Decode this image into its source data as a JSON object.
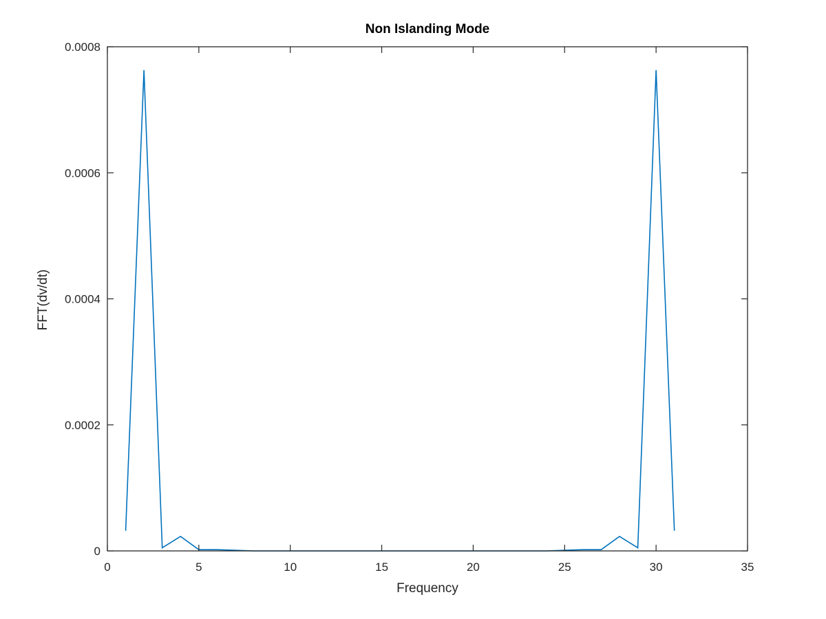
{
  "chart_data": {
    "type": "line",
    "title": "Non Islanding Mode",
    "xlabel": "Frequency",
    "ylabel": "FFT(dv/dt)",
    "xlim": [
      0,
      35
    ],
    "ylim": [
      0,
      0.0008
    ],
    "x_ticks": [
      0,
      5,
      10,
      15,
      20,
      25,
      30,
      35
    ],
    "y_ticks": [
      0,
      0.0002,
      0.0004,
      0.0006,
      0.0008
    ],
    "x_tick_labels": [
      "0",
      "5",
      "10",
      "15",
      "20",
      "25",
      "30",
      "35"
    ],
    "y_tick_labels": [
      "0",
      "0.0002",
      "0.0004",
      "0.0006",
      "0.0008"
    ],
    "grid": false,
    "box": true,
    "series": [
      {
        "color": "#0072bd",
        "x": [
          1,
          2,
          3,
          4,
          5,
          6,
          7,
          8,
          9,
          10,
          11,
          12,
          13,
          14,
          15,
          16,
          17,
          18,
          19,
          20,
          21,
          22,
          23,
          24,
          25,
          26,
          27,
          28,
          29,
          30,
          31
        ],
        "y": [
          3.2e-05,
          0.000763,
          5e-06,
          2.3e-05,
          2e-06,
          2e-06,
          1e-06,
          0.0,
          0.0,
          0.0,
          0.0,
          0.0,
          0.0,
          0.0,
          0.0,
          0.0,
          0.0,
          0.0,
          0.0,
          0.0,
          0.0,
          0.0,
          0.0,
          0.0,
          1e-06,
          2e-06,
          2e-06,
          2.3e-05,
          5e-06,
          0.000763,
          3.2e-05
        ]
      }
    ]
  }
}
